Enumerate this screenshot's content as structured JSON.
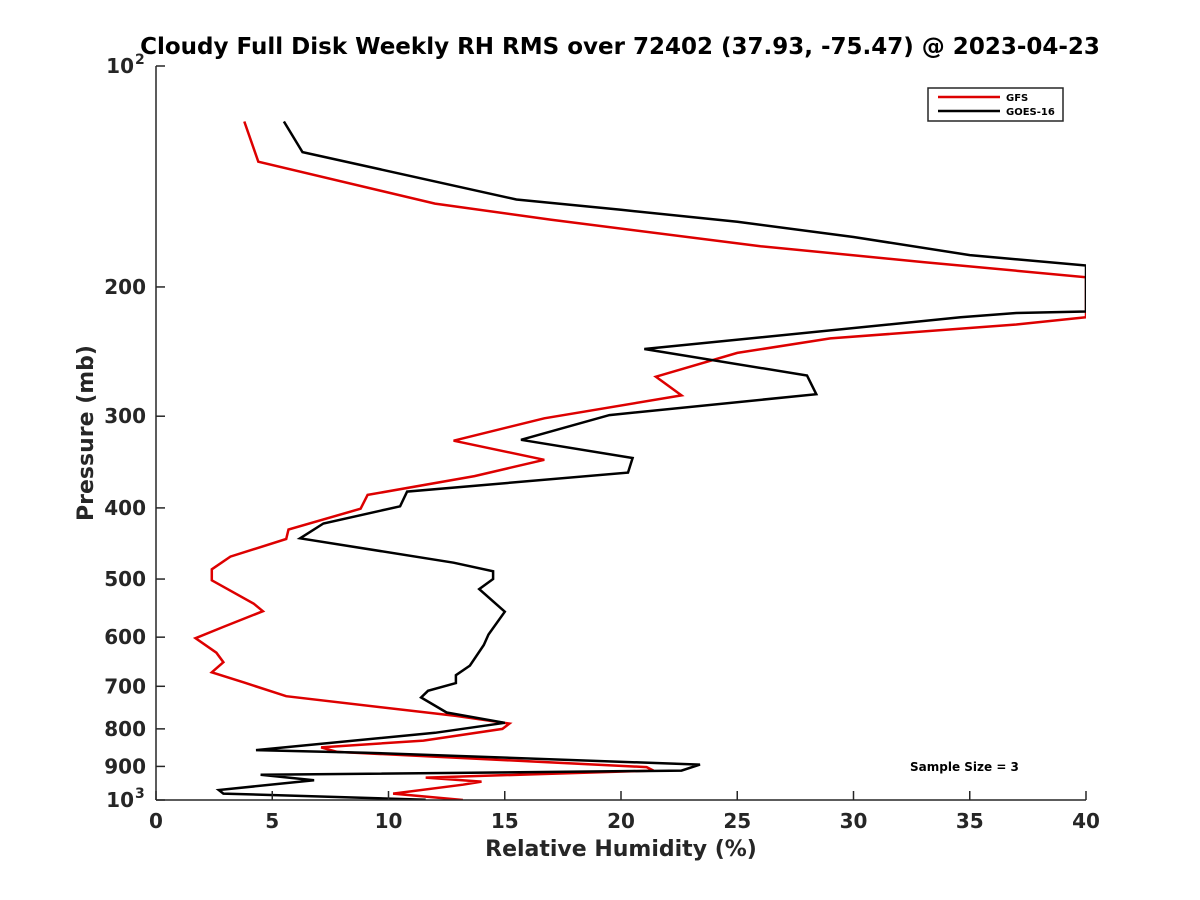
{
  "chart_data": {
    "type": "line",
    "title": "Cloudy Full Disk Weekly RH RMS over 72402 (37.93, -75.47) @ 2023-04-23",
    "xlabel": "Relative Humidity (%)",
    "ylabel": "Pressure (mb)",
    "xlim": [
      0,
      40
    ],
    "ylim": [
      100,
      1000
    ],
    "yscale": "log",
    "y_reversed": true,
    "grid": false,
    "legend_position": "top-right",
    "x_ticks": [
      {
        "value": 0,
        "label": "0"
      },
      {
        "value": 5,
        "label": "5"
      },
      {
        "value": 10,
        "label": "10"
      },
      {
        "value": 15,
        "label": "15"
      },
      {
        "value": 20,
        "label": "20"
      },
      {
        "value": 25,
        "label": "25"
      },
      {
        "value": 30,
        "label": "30"
      },
      {
        "value": 35,
        "label": "35"
      },
      {
        "value": 40,
        "label": "40"
      }
    ],
    "y_ticks": [
      {
        "value": 100,
        "label": "10",
        "sup": "2"
      },
      {
        "value": 200,
        "label": "200",
        "sup": ""
      },
      {
        "value": 300,
        "label": "300",
        "sup": ""
      },
      {
        "value": 400,
        "label": "400",
        "sup": ""
      },
      {
        "value": 500,
        "label": "500",
        "sup": ""
      },
      {
        "value": 600,
        "label": "600",
        "sup": ""
      },
      {
        "value": 700,
        "label": "700",
        "sup": ""
      },
      {
        "value": 800,
        "label": "800",
        "sup": ""
      },
      {
        "value": 900,
        "label": "900",
        "sup": ""
      },
      {
        "value": 1000,
        "label": "10",
        "sup": "3"
      }
    ],
    "annotation": "Sample Size = 3",
    "series": [
      {
        "name": "GFS",
        "color": "#dd0000",
        "points": [
          [
            3.8,
            119
          ],
          [
            4.4,
            135
          ],
          [
            12.0,
            154
          ],
          [
            17.0,
            162
          ],
          [
            26.0,
            176
          ],
          [
            33.0,
            185
          ],
          [
            40.0,
            194
          ],
          [
            40.0,
            220
          ],
          [
            37.0,
            225
          ],
          [
            29.0,
            235
          ],
          [
            25.0,
            246
          ],
          [
            21.5,
            265
          ],
          [
            22.6,
            281
          ],
          [
            16.7,
            302
          ],
          [
            12.8,
            324
          ],
          [
            16.7,
            344
          ],
          [
            13.7,
            362
          ],
          [
            9.1,
            384
          ],
          [
            8.8,
            401
          ],
          [
            5.7,
            428
          ],
          [
            5.6,
            441
          ],
          [
            3.2,
            466
          ],
          [
            2.4,
            485
          ],
          [
            2.4,
            502
          ],
          [
            4.2,
            540
          ],
          [
            4.6,
            553
          ],
          [
            2.9,
            581
          ],
          [
            1.7,
            602
          ],
          [
            2.6,
            630
          ],
          [
            2.9,
            649
          ],
          [
            2.4,
            670
          ],
          [
            3.8,
            692
          ],
          [
            5.6,
            722
          ],
          [
            12.9,
            768
          ],
          [
            15.2,
            787
          ],
          [
            14.9,
            800
          ],
          [
            11.5,
            830
          ],
          [
            7.1,
            848
          ],
          [
            7.8,
            860
          ],
          [
            21.1,
            902
          ],
          [
            21.4,
            912
          ],
          [
            11.6,
            932
          ],
          [
            14.0,
            944
          ],
          [
            13.2,
            953
          ],
          [
            10.2,
            980
          ],
          [
            13.2,
            1000
          ]
        ]
      },
      {
        "name": "GOES-16",
        "color": "#000000",
        "points": [
          [
            5.5,
            119
          ],
          [
            6.3,
            131
          ],
          [
            15.5,
            152
          ],
          [
            20.0,
            157
          ],
          [
            25.0,
            163
          ],
          [
            30.0,
            171
          ],
          [
            35.0,
            181
          ],
          [
            40.0,
            187
          ],
          [
            40.0,
            216
          ],
          [
            37.0,
            217
          ],
          [
            34.6,
            220
          ],
          [
            21.0,
            243
          ],
          [
            28.0,
            264
          ],
          [
            28.4,
            280
          ],
          [
            19.5,
            299
          ],
          [
            15.7,
            323
          ],
          [
            20.5,
            342
          ],
          [
            20.3,
            358
          ],
          [
            10.8,
            380
          ],
          [
            10.5,
            398
          ],
          [
            7.2,
            420
          ],
          [
            6.2,
            440
          ],
          [
            12.8,
            475
          ],
          [
            14.5,
            488
          ],
          [
            14.5,
            500
          ],
          [
            13.9,
            516
          ],
          [
            15.0,
            554
          ],
          [
            14.3,
            595
          ],
          [
            14.1,
            615
          ],
          [
            13.5,
            656
          ],
          [
            12.9,
            676
          ],
          [
            12.9,
            693
          ],
          [
            11.7,
            710
          ],
          [
            11.4,
            725
          ],
          [
            12.5,
            760
          ],
          [
            15.0,
            785
          ],
          [
            12.0,
            810
          ],
          [
            4.3,
            855
          ],
          [
            9.0,
            862
          ],
          [
            23.4,
            895
          ],
          [
            22.6,
            912
          ],
          [
            4.5,
            924
          ],
          [
            6.8,
            940
          ],
          [
            2.7,
            969
          ],
          [
            2.9,
            980
          ],
          [
            11.6,
            999
          ]
        ]
      }
    ]
  }
}
